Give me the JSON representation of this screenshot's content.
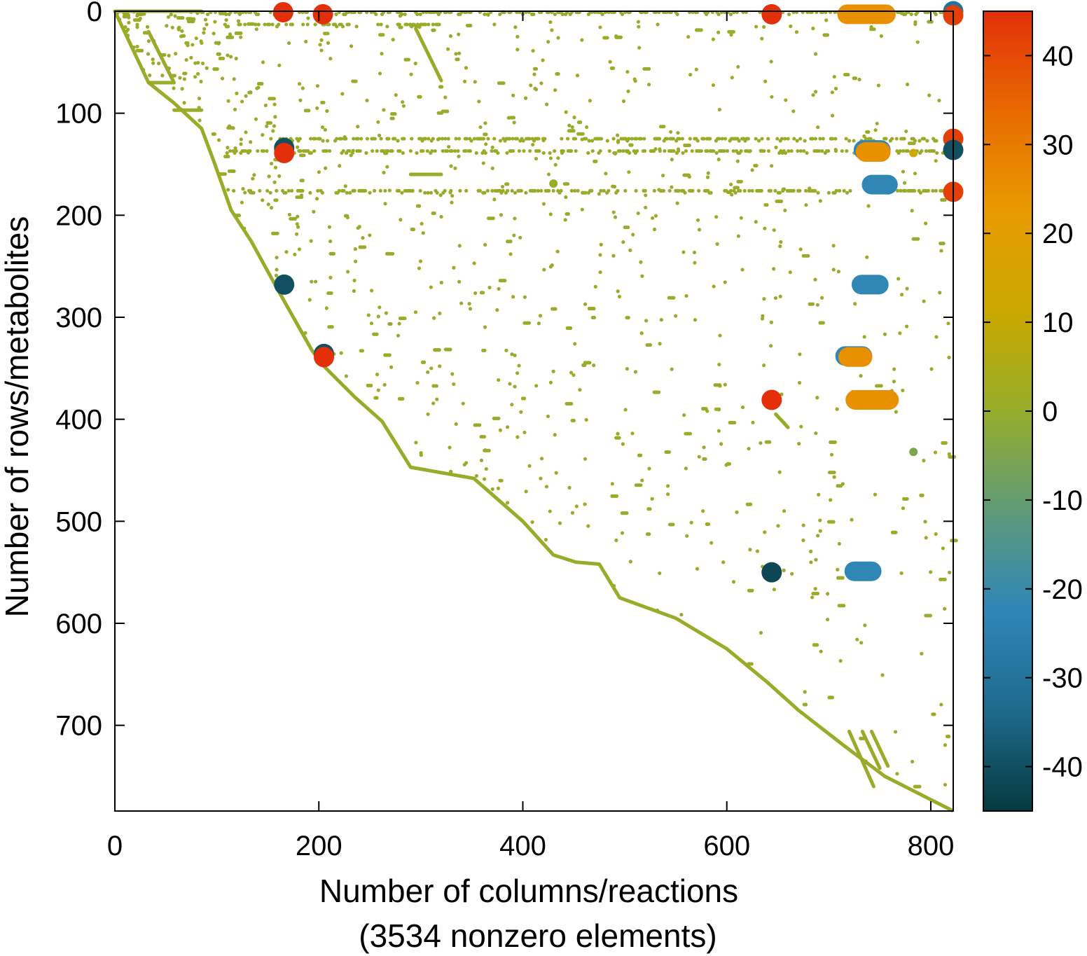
{
  "chart_data": {
    "type": "scatter",
    "title": "",
    "xlabel": "Number of columns/reactions",
    "xlabel_line2": "(3534 nonzero elements)",
    "ylabel": "Number of rows/metabolites",
    "xlim": [
      0,
      822
    ],
    "ylim": [
      784,
      0
    ],
    "y_inverted": true,
    "x_ticks": [
      "0",
      "200",
      "400",
      "600",
      "800"
    ],
    "y_ticks": [
      "0",
      "100",
      "200",
      "300",
      "400",
      "500",
      "600",
      "700"
    ],
    "grid": false,
    "colorbar": {
      "range": [
        -45,
        45
      ],
      "ticks": [
        "40",
        "30",
        "20",
        "10",
        "0",
        "-10",
        "-20",
        "-30",
        "-40"
      ],
      "colors": [
        "#06393f",
        "#1f6a8c",
        "#2e86b8",
        "#5f9a78",
        "#96ad2c",
        "#c9a800",
        "#e89b00",
        "#e86a00",
        "#e3300a"
      ]
    },
    "default_color": "#9aab2a",
    "large_points": [
      {
        "x": 165,
        "y": 1,
        "value": 45
      },
      {
        "x": 204,
        "y": 3,
        "value": 45
      },
      {
        "x": 644,
        "y": 3,
        "value": 45
      },
      {
        "x": 822,
        "y": 0,
        "value": -30
      },
      {
        "x": 822,
        "y": 4,
        "value": 42
      },
      {
        "x": 166,
        "y": 134,
        "value": -40
      },
      {
        "x": 166,
        "y": 139,
        "value": 45
      },
      {
        "x": 822,
        "y": 125,
        "value": 42
      },
      {
        "x": 822,
        "y": 136,
        "value": -40
      },
      {
        "x": 822,
        "y": 177,
        "value": 42
      },
      {
        "x": 166,
        "y": 268,
        "value": -40
      },
      {
        "x": 205,
        "y": 336,
        "value": -40
      },
      {
        "x": 205,
        "y": 339,
        "value": 45
      },
      {
        "x": 644,
        "y": 381,
        "value": 45
      },
      {
        "x": 644,
        "y": 550,
        "value": -42
      }
    ],
    "segments": [
      {
        "x1": 718,
        "x2": 756,
        "y": 3,
        "value": 25
      },
      {
        "x1": 734,
        "x2": 751,
        "y": 136,
        "value": -22
      },
      {
        "x1": 736,
        "x2": 751,
        "y": 138,
        "value": 25
      },
      {
        "x1": 742,
        "x2": 758,
        "y": 170,
        "value": -22
      },
      {
        "x1": 732,
        "x2": 749,
        "y": 268,
        "value": -22
      },
      {
        "x1": 716,
        "x2": 733,
        "y": 338,
        "value": -22
      },
      {
        "x1": 719,
        "x2": 733,
        "y": 339,
        "value": 25
      },
      {
        "x1": 726,
        "x2": 759,
        "y": 381,
        "value": 25
      },
      {
        "x1": 725,
        "x2": 742,
        "y": 549,
        "value": -22
      }
    ],
    "medium_points": [
      {
        "x": 783,
        "y": 432,
        "value": -5
      },
      {
        "x": 783,
        "y": 139,
        "value": 12
      },
      {
        "x": 430,
        "y": 169,
        "value": 0
      }
    ],
    "diagonal": [
      [
        0,
        0
      ],
      [
        33,
        70
      ],
      [
        58,
        90
      ],
      [
        85,
        115
      ],
      [
        97,
        147
      ],
      [
        114,
        195
      ],
      [
        134,
        226
      ],
      [
        162,
        277
      ],
      [
        193,
        332
      ],
      [
        203,
        346
      ],
      [
        235,
        378
      ],
      [
        262,
        402
      ],
      [
        290,
        447
      ],
      [
        352,
        458
      ],
      [
        400,
        500
      ],
      [
        430,
        533
      ],
      [
        452,
        540
      ],
      [
        475,
        542
      ],
      [
        495,
        575
      ],
      [
        550,
        595
      ],
      [
        600,
        625
      ],
      [
        640,
        658
      ],
      [
        670,
        685
      ],
      [
        715,
        720
      ],
      [
        755,
        750
      ],
      [
        822,
        784
      ]
    ],
    "extra_lines": [
      [
        [
          0,
          0
        ],
        [
          85,
          0
        ]
      ],
      [
        [
          33,
          70
        ],
        [
          58,
          70
        ]
      ],
      [
        [
          33,
          20
        ],
        [
          58,
          70
        ]
      ],
      [
        [
          58,
          97
        ],
        [
          85,
          97
        ]
      ],
      [
        [
          295,
          17
        ],
        [
          320,
          68
        ]
      ],
      [
        [
          290,
          160
        ],
        [
          320,
          160
        ]
      ],
      [
        [
          720,
          706
        ],
        [
          744,
          760
        ]
      ],
      [
        [
          733,
          706
        ],
        [
          750,
          742
        ]
      ],
      [
        [
          742,
          706
        ],
        [
          758,
          740
        ]
      ],
      [
        [
          648,
          395
        ],
        [
          660,
          408
        ]
      ]
    ],
    "row_bands": [
      {
        "y": 1,
        "x1": 85,
        "x2": 822
      },
      {
        "y": 13,
        "x1": 90,
        "x2": 320
      },
      {
        "y": 125,
        "x1": 150,
        "x2": 822
      },
      {
        "y": 137,
        "x1": 110,
        "x2": 822
      },
      {
        "y": 176,
        "x1": 115,
        "x2": 822
      }
    ]
  }
}
